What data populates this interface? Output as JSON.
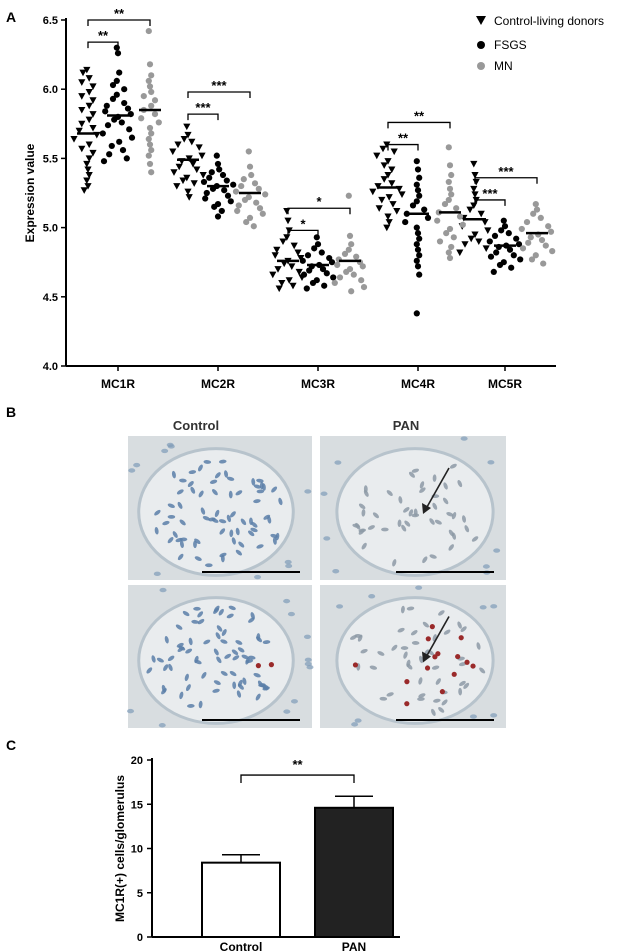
{
  "panels": {
    "a_label": "A",
    "b_label": "B",
    "c_label": "C"
  },
  "colors": {
    "control": "#000000",
    "fsgs": "#000000",
    "mn": "#999999",
    "bar_control_fill": "#ffffff",
    "bar_pan_fill": "#222222",
    "tissue_bg": "#d8dde0",
    "nuclei_blue": "#5a7fa8",
    "stain_red": "#9a2a2a"
  },
  "chart_data": [
    {
      "type": "scatter",
      "panel": "A",
      "ylabel": "Expression value",
      "ylim": [
        4.0,
        6.5
      ],
      "yticks": [
        "4.0",
        "4.5",
        "5.0",
        "5.5",
        "6.0",
        "6.5"
      ],
      "categories": [
        "MC1R",
        "MC2R",
        "MC3R",
        "MC4R",
        "MC5R"
      ],
      "legend": {
        "placement": "top-right",
        "entries": [
          {
            "name": "Control-living donors",
            "marker": "triangle-down-icon",
            "color": "#000000"
          },
          {
            "name": "FSGS",
            "marker": "circle-icon",
            "color": "#000000"
          },
          {
            "name": "MN",
            "marker": "circle-icon",
            "color": "#999999"
          }
        ]
      },
      "series": [
        {
          "name": "Control-living donors",
          "means": [
            5.68,
            5.49,
            4.76,
            5.29,
            5.06
          ],
          "values": [
            [
              6.14,
              6.12,
              6.08,
              6.05,
              6.02,
              5.98,
              5.95,
              5.92,
              5.88,
              5.85,
              5.82,
              5.78,
              5.75,
              5.72,
              5.7,
              5.67,
              5.64,
              5.6,
              5.57,
              5.54,
              5.5,
              5.46,
              5.42,
              5.38,
              5.34,
              5.3,
              5.27
            ],
            [
              5.73,
              5.67,
              5.64,
              5.62,
              5.6,
              5.58,
              5.55,
              5.52,
              5.5,
              5.48,
              5.46,
              5.44,
              5.42,
              5.4,
              5.38,
              5.36,
              5.34,
              5.32,
              5.3,
              5.26,
              5.22
            ],
            [
              5.12,
              5.05,
              4.98,
              4.93,
              4.9,
              4.87,
              4.84,
              4.82,
              4.8,
              4.78,
              4.76,
              4.74,
              4.72,
              4.7,
              4.68,
              4.66,
              4.64,
              4.62,
              4.6,
              4.58,
              4.56
            ],
            [
              5.6,
              5.57,
              5.55,
              5.52,
              5.48,
              5.45,
              5.42,
              5.38,
              5.35,
              5.32,
              5.3,
              5.28,
              5.26,
              5.24,
              5.22,
              5.2,
              5.17,
              5.14,
              5.12,
              5.08,
              5.04,
              5.0
            ],
            [
              5.46,
              5.38,
              5.33,
              5.28,
              5.24,
              5.2,
              5.16,
              5.13,
              5.1,
              5.07,
              5.04,
              5.01,
              4.98,
              4.95,
              4.92,
              4.9,
              4.88,
              4.85,
              4.82
            ]
          ]
        },
        {
          "name": "FSGS",
          "means": [
            5.81,
            5.3,
            4.73,
            5.1,
            4.87
          ],
          "values": [
            [
              6.3,
              6.26,
              6.12,
              6.06,
              6.03,
              6.0,
              5.96,
              5.93,
              5.9,
              5.88,
              5.86,
              5.84,
              5.82,
              5.8,
              5.78,
              5.76,
              5.74,
              5.71,
              5.68,
              5.65,
              5.62,
              5.59,
              5.56,
              5.53,
              5.5,
              5.48
            ],
            [
              5.52,
              5.46,
              5.42,
              5.4,
              5.38,
              5.36,
              5.34,
              5.33,
              5.31,
              5.3,
              5.28,
              5.27,
              5.25,
              5.23,
              5.21,
              5.19,
              5.17,
              5.15,
              5.12,
              5.08
            ],
            [
              4.93,
              4.88,
              4.85,
              4.82,
              4.8,
              4.78,
              4.76,
              4.75,
              4.73,
              4.72,
              4.7,
              4.69,
              4.67,
              4.66,
              4.64,
              4.62,
              4.6,
              4.58,
              4.56
            ],
            [
              5.48,
              5.42,
              5.36,
              5.31,
              5.27,
              5.23,
              5.19,
              5.16,
              5.13,
              5.1,
              5.07,
              5.04,
              5.0,
              4.96,
              4.92,
              4.88,
              4.84,
              4.8,
              4.76,
              4.72,
              4.66,
              4.38
            ],
            [
              5.05,
              5.01,
              4.98,
              4.96,
              4.94,
              4.92,
              4.9,
              4.88,
              4.87,
              4.86,
              4.84,
              4.82,
              4.8,
              4.79,
              4.77,
              4.75,
              4.73,
              4.71,
              4.68
            ]
          ]
        },
        {
          "name": "MN",
          "means": [
            5.85,
            5.25,
            4.76,
            5.11,
            4.96
          ],
          "values": [
            [
              6.42,
              6.18,
              6.1,
              6.06,
              6.02,
              5.98,
              5.95,
              5.92,
              5.88,
              5.85,
              5.82,
              5.79,
              5.76,
              5.72,
              5.68,
              5.64,
              5.6,
              5.56,
              5.52,
              5.46,
              5.4
            ],
            [
              5.55,
              5.44,
              5.38,
              5.35,
              5.32,
              5.3,
              5.28,
              5.26,
              5.24,
              5.22,
              5.2,
              5.18,
              5.16,
              5.14,
              5.12,
              5.1,
              5.07,
              5.04,
              5.01
            ],
            [
              5.23,
              4.94,
              4.88,
              4.84,
              4.81,
              4.79,
              4.77,
              4.75,
              4.73,
              4.72,
              4.7,
              4.68,
              4.66,
              4.64,
              4.62,
              4.6,
              4.57,
              4.54
            ],
            [
              5.58,
              5.45,
              5.38,
              5.33,
              5.28,
              5.24,
              5.2,
              5.17,
              5.14,
              5.11,
              5.08,
              5.05,
              5.02,
              4.99,
              4.96,
              4.93,
              4.9,
              4.86,
              4.82,
              4.78
            ],
            [
              5.17,
              5.13,
              5.1,
              5.07,
              5.04,
              5.01,
              4.99,
              4.97,
              4.95,
              4.93,
              4.91,
              4.89,
              4.87,
              4.85,
              4.83,
              4.8,
              4.77,
              4.74
            ]
          ]
        }
      ],
      "annotations": [
        {
          "category": 0,
          "from": 0,
          "to": 1,
          "label": "**",
          "y": 6.34
        },
        {
          "category": 0,
          "from": 0,
          "to": 2,
          "label": "**",
          "y": 6.5
        },
        {
          "category": 1,
          "from": 0,
          "to": 1,
          "label": "***",
          "y": 5.82
        },
        {
          "category": 1,
          "from": 0,
          "to": 2,
          "label": "***",
          "y": 5.98
        },
        {
          "category": 2,
          "from": 0,
          "to": 1,
          "label": "*",
          "y": 4.98
        },
        {
          "category": 2,
          "from": 0,
          "to": 2,
          "label": "*",
          "y": 5.14
        },
        {
          "category": 3,
          "from": 0,
          "to": 1,
          "label": "**",
          "y": 5.6
        },
        {
          "category": 3,
          "from": 0,
          "to": 2,
          "label": "**",
          "y": 5.76
        },
        {
          "category": 4,
          "from": 0,
          "to": 1,
          "label": "***",
          "y": 5.2
        },
        {
          "category": 4,
          "from": 0,
          "to": 2,
          "label": "***",
          "y": 5.36
        }
      ]
    },
    {
      "type": "bar",
      "panel": "C",
      "ylabel": "MC1R(+) cells/glomerulus",
      "ylim": [
        0,
        20
      ],
      "yticks": [
        "0",
        "5",
        "10",
        "15",
        "20"
      ],
      "categories": [
        "Control",
        "PAN"
      ],
      "values": [
        8.4,
        14.6
      ],
      "errors": [
        0.9,
        1.3
      ],
      "annotation": {
        "from": 0,
        "to": 1,
        "label": "**",
        "y": 18.3
      }
    }
  ],
  "micrographs": {
    "control_title": "Control",
    "pan_title": "PAN",
    "images": [
      {
        "id": "control-top",
        "column": "control",
        "row": 0,
        "red_dots": 0,
        "arrow": false
      },
      {
        "id": "pan-top",
        "column": "pan",
        "row": 0,
        "red_dots": 0,
        "arrow": true
      },
      {
        "id": "control-bottom",
        "column": "control",
        "row": 1,
        "red_dots": 2,
        "arrow": false
      },
      {
        "id": "pan-bottom",
        "column": "pan",
        "row": 1,
        "red_dots": 14,
        "arrow": true
      }
    ]
  }
}
